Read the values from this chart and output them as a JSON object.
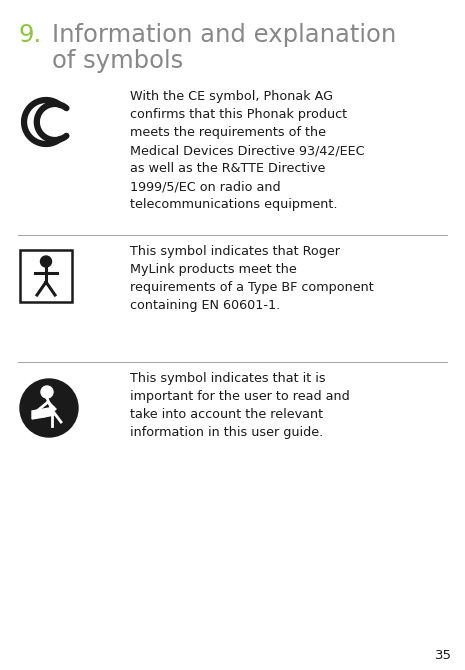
{
  "title_number": "9.",
  "title_line1": "Information and explanation",
  "title_line2": "of symbols",
  "title_color": "#8dc63f",
  "page_number": "35",
  "bg_color": "#ffffff",
  "text_color": "#1a1a1a",
  "gray_text": "#888888",
  "body_font_size": 9.2,
  "title_font_size": 17.5,
  "separator_color": "#aaaaaa",
  "sym_color": "#1a1a1a",
  "entries": [
    {
      "symbol_type": "CE",
      "text": "With the CE symbol, Phonak AG\nconfirms that this Phonak product\nmeets the requirements of the\nMedical Devices Directive 93/42/EEC\nas well as the R&TTE Directive\n1999/5/EC on radio and\ntelecommunications equipment."
    },
    {
      "symbol_type": "BF",
      "text": "This symbol indicates that Roger\nMyLink products meet the\nrequirements of a Type BF component\ncontaining EN 60601-1."
    },
    {
      "symbol_type": "USER",
      "text": "This symbol indicates that it is\nimportant for the user to read and\ntake into account the relevant\ninformation in this user guide."
    }
  ]
}
